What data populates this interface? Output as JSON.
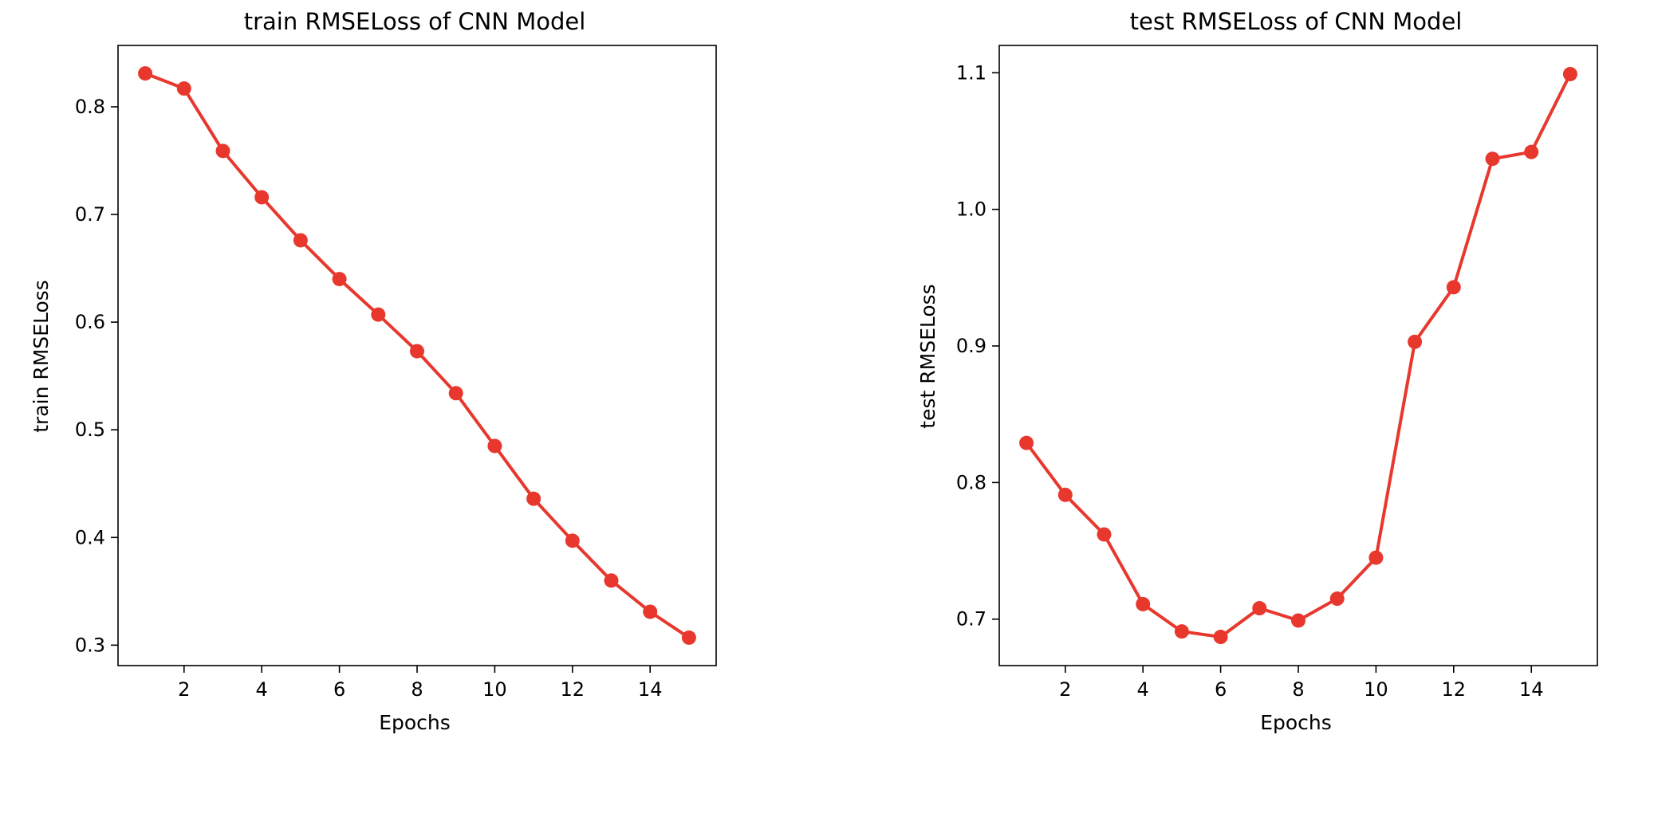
{
  "chart_data": [
    {
      "type": "line",
      "title": "train RMSELoss of CNN Model",
      "xlabel": "Epochs",
      "ylabel": "train RMSELoss",
      "x": [
        1,
        2,
        3,
        4,
        5,
        6,
        7,
        8,
        9,
        10,
        11,
        12,
        13,
        14,
        15
      ],
      "series": [
        {
          "values": [
            0.831,
            0.817,
            0.759,
            0.716,
            0.676,
            0.64,
            0.607,
            0.573,
            0.534,
            0.485,
            0.436,
            0.397,
            0.36,
            0.331,
            0.307
          ],
          "color": "#e8382e",
          "marker": "circle"
        }
      ],
      "xlim": [
        0.3,
        15.7
      ],
      "ylim": [
        0.281,
        0.857
      ],
      "xticks": [
        2,
        4,
        6,
        8,
        10,
        12,
        14
      ],
      "xtick_labels": [
        "2",
        "4",
        "6",
        "8",
        "10",
        "12",
        "14"
      ],
      "yticks": [
        0.3,
        0.4,
        0.5,
        0.6,
        0.7,
        0.8
      ],
      "ytick_labels": [
        "0.3",
        "0.4",
        "0.5",
        "0.6",
        "0.7",
        "0.8"
      ],
      "grid": false,
      "legend": "none"
    },
    {
      "type": "line",
      "title": "test RMSELoss of CNN Model",
      "xlabel": "Epochs",
      "ylabel": "test RMSELoss",
      "x": [
        1,
        2,
        3,
        4,
        5,
        6,
        7,
        8,
        9,
        10,
        11,
        12,
        13,
        14,
        15
      ],
      "series": [
        {
          "values": [
            0.829,
            0.791,
            0.762,
            0.711,
            0.691,
            0.687,
            0.708,
            0.699,
            0.715,
            0.745,
            0.903,
            0.943,
            1.037,
            1.042,
            1.099
          ],
          "color": "#e8382e",
          "marker": "circle"
        }
      ],
      "xlim": [
        0.3,
        15.7
      ],
      "ylim": [
        0.666,
        1.12
      ],
      "xticks": [
        2,
        4,
        6,
        8,
        10,
        12,
        14
      ],
      "xtick_labels": [
        "2",
        "4",
        "6",
        "8",
        "10",
        "12",
        "14"
      ],
      "yticks": [
        0.7,
        0.8,
        0.9,
        1.0,
        1.1
      ],
      "ytick_labels": [
        "0.7",
        "0.8",
        "0.9",
        "1.0",
        "1.1"
      ],
      "grid": false,
      "legend": "none"
    }
  ]
}
